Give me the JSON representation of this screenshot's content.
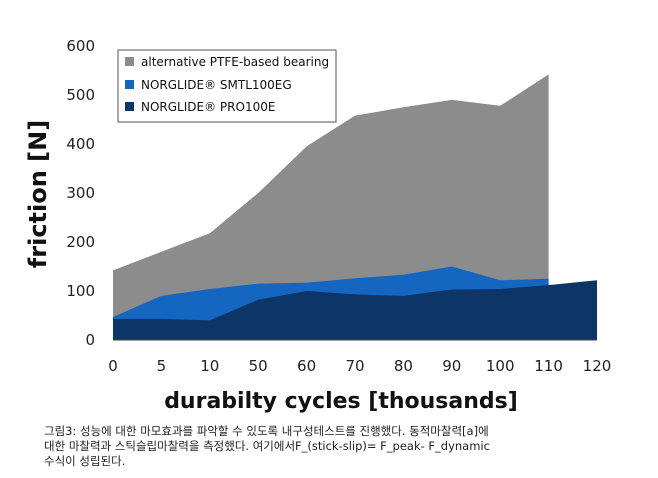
{
  "chart_data": {
    "type": "area",
    "x": [
      0,
      5,
      10,
      50,
      60,
      70,
      80,
      90,
      100,
      110,
      120
    ],
    "series": [
      {
        "name": "alternative PTFE-based bearing",
        "color": "#8c8c8c",
        "values": [
          142,
          180,
          218,
          300,
          395,
          458,
          475,
          490,
          478,
          542,
          null
        ]
      },
      {
        "name": "NORGLIDE® SMTL100EG",
        "color": "#1566c0",
        "values": [
          47,
          90,
          104,
          115,
          117,
          126,
          133,
          150,
          122,
          125,
          null
        ]
      },
      {
        "name": "NORGLIDE® PRO100E",
        "color": "#0d3567",
        "values": [
          43,
          43,
          40,
          82,
          100,
          93,
          90,
          103,
          104,
          112,
          122
        ]
      }
    ],
    "ylabel": "friction  [N]",
    "xlabel": "durabilty cycles [thousands]",
    "ylim": [
      0,
      600
    ],
    "yticks": [
      0,
      100,
      200,
      300,
      400,
      500,
      600
    ],
    "xtick_labels": [
      "0",
      "5",
      "10",
      "50",
      "60",
      "70",
      "80",
      "90",
      "100",
      "110",
      "120"
    ],
    "legend_position": "top-left",
    "grid": false
  },
  "caption": {
    "line1": "그림3: 성능에 대한 마모효과를 파악할 수 있도록 내구성테스트를 진행했다.  동적마찰력[a]에",
    "line2": "대한 마찰력과 스틱슬립마찰력을 측정했다. 여기에서F_(stick-slip)= F_peak- F_dynamic",
    "line3": "수식이 성립된다."
  }
}
